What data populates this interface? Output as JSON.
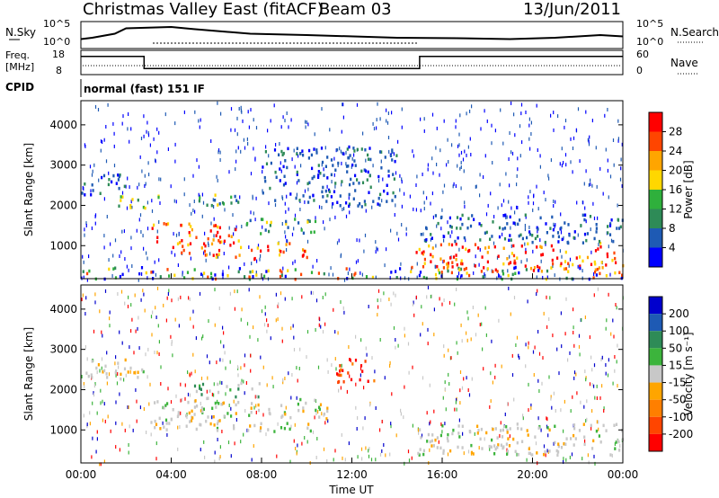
{
  "header": {
    "title": "Christmas Valley East (fitACF)",
    "beam": "Beam 03",
    "date": "13/Jun/2011"
  },
  "panels": {
    "nsky": {
      "label": "N.Sky",
      "yticks": [
        "10^5",
        "10^0"
      ],
      "right_label": "N.Search",
      "right_ticks": [
        "10^5",
        "10^0"
      ]
    },
    "freq": {
      "label_top": "Freq.",
      "label_unit": "[MHz]",
      "yticks": [
        "18",
        "8"
      ],
      "right_label": "Nave",
      "right_ticks": [
        "60",
        "0"
      ]
    },
    "cpid": {
      "label": "CPID",
      "value": "normal (fast) 151 IF"
    }
  },
  "chart_data": [
    {
      "type": "heatmap",
      "name": "power",
      "ylabel": "Slant Range [km]",
      "yticks": [
        "1000",
        "2000",
        "3000",
        "4000"
      ],
      "ylim": [
        180,
        4600
      ],
      "colorbar": {
        "label": "Power [dB]",
        "ticks": [
          "4",
          "8",
          "12",
          "16",
          "20",
          "24",
          "28"
        ],
        "colors": [
          "#0000ff",
          "#1e5ab4",
          "#2e8b57",
          "#2fb03c",
          "#ffd700",
          "#ffa500",
          "#ff4500",
          "#ff0000"
        ]
      },
      "regions": [
        {
          "t0": 0.0,
          "t1": 2.2,
          "r0": 2300,
          "r1": 2800,
          "level": "low"
        },
        {
          "t0": 1.5,
          "t1": 3.5,
          "r0": 1950,
          "r1": 2300,
          "level": "mid"
        },
        {
          "t0": 3.0,
          "t1": 7.0,
          "r0": 1100,
          "r1": 1600,
          "level": "high"
        },
        {
          "t0": 4.0,
          "t1": 10.0,
          "r0": 700,
          "r1": 1100,
          "level": "high"
        },
        {
          "t0": 7.0,
          "t1": 10.5,
          "r0": 1300,
          "r1": 1700,
          "level": "mid"
        },
        {
          "t0": 5.0,
          "t1": 7.0,
          "r0": 1900,
          "r1": 2300,
          "level": "mid"
        },
        {
          "t0": 8.0,
          "t1": 14.0,
          "r0": 2000,
          "r1": 3500,
          "level": "low"
        },
        {
          "t0": 14.8,
          "t1": 24.0,
          "r0": 400,
          "r1": 1100,
          "level": "high"
        },
        {
          "t0": 14.8,
          "t1": 24.0,
          "r0": 1100,
          "r1": 1800,
          "level": "low"
        },
        {
          "t0": 0.0,
          "t1": 24.0,
          "r0": 200,
          "r1": 500,
          "level": "mixed"
        }
      ]
    },
    {
      "type": "heatmap",
      "name": "velocity",
      "ylabel": "Slant Range [km]",
      "yticks": [
        "1000",
        "2000",
        "3000",
        "4000"
      ],
      "ylim": [
        180,
        4600
      ],
      "xlabel": "Time UT",
      "xticks": [
        "00:00",
        "04:00",
        "08:00",
        "12:00",
        "16:00",
        "20:00",
        "00:00"
      ],
      "xlim": [
        0,
        24
      ],
      "colorbar": {
        "label": "Velocity [m s⁻¹]",
        "ticks": [
          "200",
          "100",
          "50",
          "15",
          "-15",
          "-50",
          "-100",
          "-200"
        ],
        "colors": [
          "#0000cd",
          "#1e5ab4",
          "#2e8b57",
          "#3cb43c",
          "#c8c8c8",
          "#ffa500",
          "#ff7f00",
          "#ff4500",
          "#ff0000"
        ]
      },
      "regions": [
        {
          "t0": 0.0,
          "t1": 3.0,
          "r0": 2300,
          "r1": 2800,
          "level": "gray"
        },
        {
          "t0": 3.0,
          "t1": 11.0,
          "r0": 1000,
          "r1": 1800,
          "level": "gray"
        },
        {
          "t0": 5.0,
          "t1": 8.0,
          "r0": 1800,
          "r1": 2200,
          "level": "green"
        },
        {
          "t0": 11.0,
          "t1": 13.0,
          "r0": 2200,
          "r1": 2800,
          "level": "red"
        },
        {
          "t0": 14.8,
          "t1": 24.0,
          "r0": 400,
          "r1": 1200,
          "level": "gray"
        }
      ]
    },
    {
      "type": "line",
      "name": "nsky-series",
      "xlim": [
        0,
        24
      ],
      "x": [
        0.0,
        0.5,
        1.5,
        2.0,
        4.0,
        5.0,
        7.5,
        10.0,
        14.0,
        17.0,
        19.0,
        21.0,
        23.0,
        24.0
      ],
      "y": [
        0.35,
        0.4,
        0.55,
        0.75,
        0.8,
        0.72,
        0.55,
        0.5,
        0.4,
        0.38,
        0.35,
        0.4,
        0.5,
        0.45
      ]
    },
    {
      "type": "line",
      "name": "freq-series",
      "xlim": [
        0,
        24
      ],
      "x": [
        0.0,
        2.8,
        2.8,
        15.0,
        15.0,
        24.0
      ],
      "y": [
        15.5,
        15.5,
        10.5,
        10.5,
        15.5,
        15.5
      ]
    }
  ]
}
